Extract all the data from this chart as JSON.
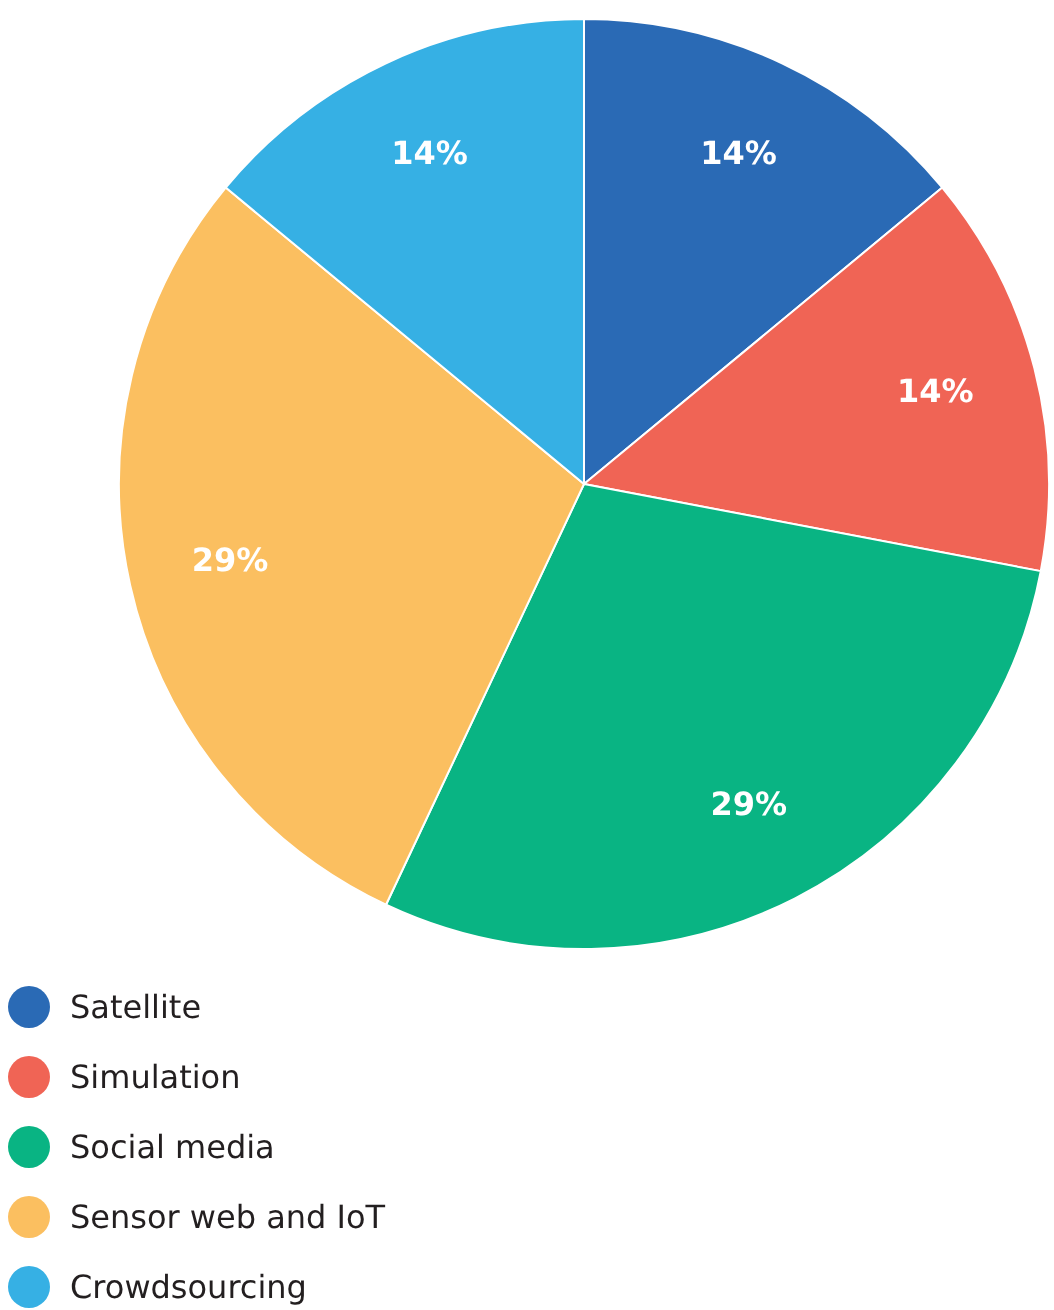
{
  "chart_data": {
    "type": "pie",
    "categories": [
      "Satellite",
      "Simulation",
      "Social media",
      "Sensor web and IoT",
      "Crowdsourcing"
    ],
    "values": [
      14,
      14,
      29,
      29,
      14
    ],
    "colors": [
      "#2a6ab5",
      "#f06455",
      "#09b483",
      "#fbbf60",
      "#36b0e4"
    ],
    "value_labels": [
      "14%",
      "14%",
      "29%",
      "29%",
      "14%"
    ],
    "legend": "bottom left"
  }
}
